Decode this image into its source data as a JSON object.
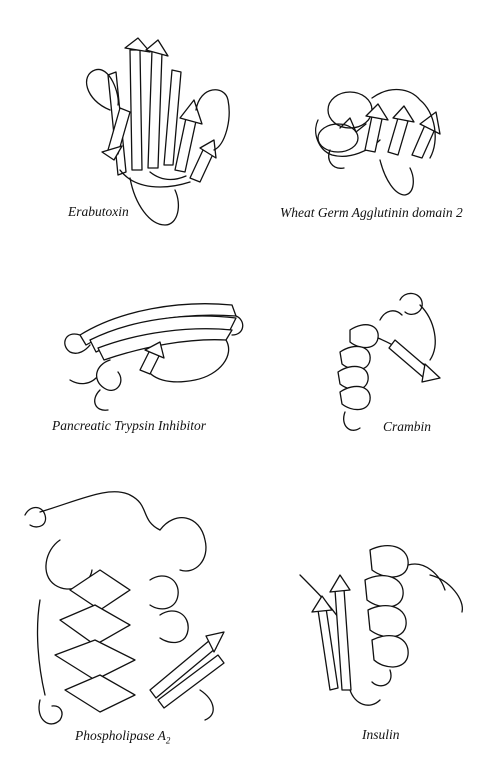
{
  "figure": {
    "labels": {
      "erabutoxin": "Erabutoxin",
      "wheat_germ": "Wheat Germ Agglutinin domain 2",
      "pancreatic": "Pancreatic Trypsin Inhibitor",
      "crambin": "Crambin",
      "phospholipase_base": "Phospholipase A",
      "phospholipase_sub": "2",
      "insulin": "Insulin"
    }
  }
}
